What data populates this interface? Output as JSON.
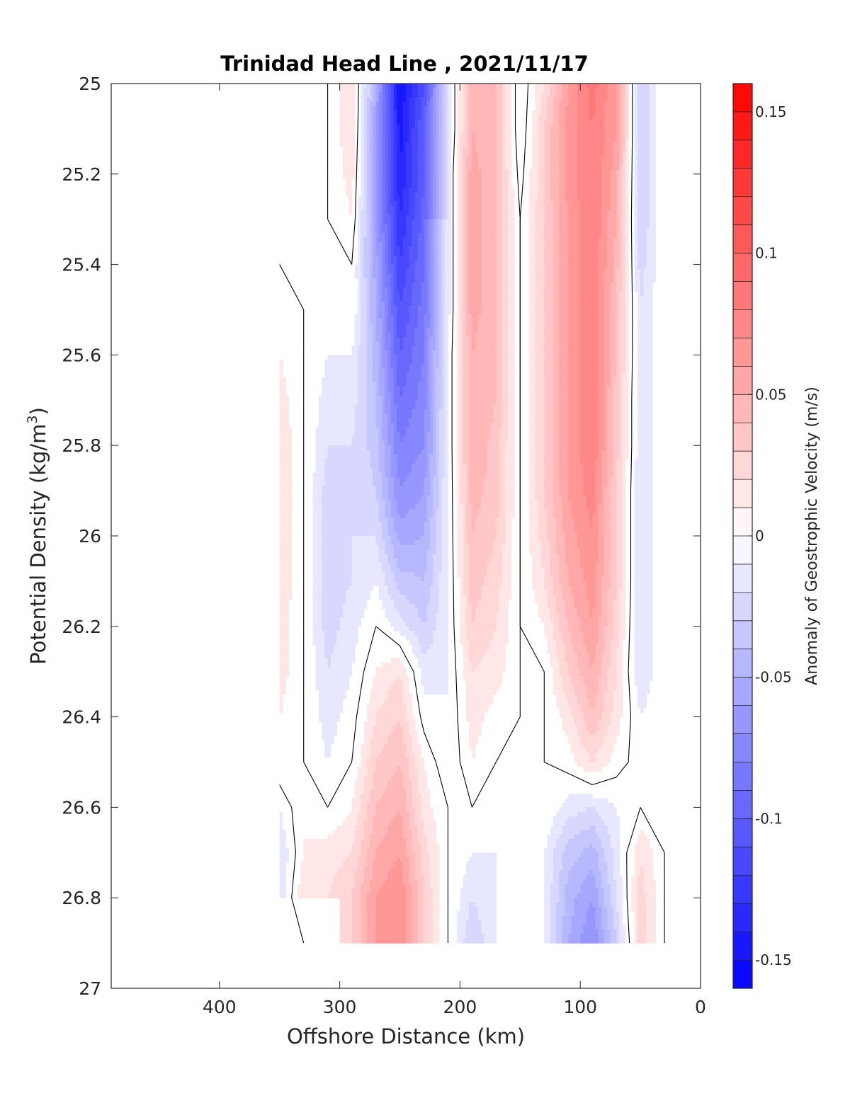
{
  "chart_data": {
    "type": "heatmap",
    "title": "Trinidad Head Line , 2021/11/17",
    "xlabel": "Offshore Distance (km)",
    "ylabel": "Potential Density (kg/m",
    "ylabel_sup": "3",
    "ylabel_close": ")",
    "colorbar_label": "Anomaly of Geostrophic Velocity (m/s)",
    "xlim": [
      490,
      0
    ],
    "ylim": [
      25,
      27
    ],
    "x_reversed": true,
    "y_reversed": true,
    "x_ticks": [
      {
        "value": 400,
        "label": "400"
      },
      {
        "value": 300,
        "label": "300"
      },
      {
        "value": 200,
        "label": "200"
      },
      {
        "value": 100,
        "label": "100"
      },
      {
        "value": 0,
        "label": "0"
      }
    ],
    "y_ticks": [
      {
        "value": 25,
        "label": "25"
      },
      {
        "value": 25.2,
        "label": "25.2"
      },
      {
        "value": 25.4,
        "label": "25.4"
      },
      {
        "value": 25.6,
        "label": "25.6"
      },
      {
        "value": 25.8,
        "label": "25.8"
      },
      {
        "value": 26,
        "label": "26"
      },
      {
        "value": 26.2,
        "label": "26.2"
      },
      {
        "value": 26.4,
        "label": "26.4"
      },
      {
        "value": 26.6,
        "label": "26.6"
      },
      {
        "value": 26.8,
        "label": "26.8"
      },
      {
        "value": 27,
        "label": "27"
      }
    ],
    "colorbar": {
      "range": [
        -0.16,
        0.16
      ],
      "levels": 32,
      "min_color": "#0000ff",
      "zero_color": "#ffffff",
      "max_color": "#ff0000",
      "ticks": [
        {
          "value": 0.15,
          "label": "0.15"
        },
        {
          "value": 0.1,
          "label": "0.1"
        },
        {
          "value": 0.05,
          "label": "0.05"
        },
        {
          "value": 0,
          "label": "0"
        },
        {
          "value": -0.05,
          "label": "-0.05"
        },
        {
          "value": -0.1,
          "label": "-0.1"
        },
        {
          "value": -0.15,
          "label": "-0.15"
        }
      ]
    },
    "grid": false,
    "data_extent": {
      "x": [
        30,
        350
      ],
      "y_max_full": 26.8,
      "y_max_partial": 26.9
    },
    "grid_x": [
      350,
      330,
      310,
      290,
      270,
      250,
      230,
      210,
      190,
      170,
      150,
      130,
      110,
      90,
      70,
      50,
      30
    ],
    "grid_y": [
      25.0,
      25.1,
      25.2,
      25.3,
      25.4,
      25.5,
      25.6,
      25.7,
      25.8,
      25.9,
      26.0,
      26.1,
      26.2,
      26.3,
      26.4,
      26.5,
      26.6,
      26.7,
      26.8,
      26.9
    ],
    "values": [
      [
        0.0,
        -0.01,
        0.0,
        0.02,
        -0.05,
        -0.15,
        -0.11,
        -0.02,
        0.05,
        0.04,
        -0.01,
        0.02,
        0.06,
        0.085,
        0.06,
        -0.03,
        0.0
      ],
      [
        0.0,
        -0.01,
        0.0,
        0.02,
        -0.06,
        -0.145,
        -0.1,
        -0.02,
        0.05,
        0.04,
        -0.01,
        0.03,
        0.065,
        0.08,
        0.06,
        -0.03,
        0.0
      ],
      [
        0.0,
        -0.01,
        0.0,
        0.015,
        -0.06,
        -0.14,
        -0.1,
        -0.015,
        0.055,
        0.04,
        -0.005,
        0.03,
        0.065,
        0.08,
        0.055,
        -0.03,
        0.0
      ],
      [
        0.0,
        -0.01,
        0.0,
        0.01,
        -0.06,
        -0.13,
        -0.095,
        -0.015,
        0.055,
        0.04,
        0.0,
        0.03,
        0.06,
        0.08,
        0.05,
        -0.03,
        0.0
      ],
      [
        0.0,
        0.0,
        0.0,
        0.0,
        -0.055,
        -0.12,
        -0.09,
        -0.015,
        0.055,
        0.04,
        0.0,
        0.03,
        0.06,
        0.08,
        0.045,
        -0.025,
        0.0
      ],
      [
        0.01,
        0.0,
        0.0,
        0.0,
        -0.05,
        -0.11,
        -0.085,
        -0.015,
        0.055,
        0.04,
        0.0,
        0.03,
        0.06,
        0.08,
        0.04,
        -0.02,
        0.0
      ],
      [
        0.01,
        0.0,
        -0.01,
        -0.01,
        -0.045,
        -0.1,
        -0.08,
        -0.01,
        0.05,
        0.04,
        0.0,
        0.03,
        0.06,
        0.08,
        0.04,
        -0.02,
        0.0
      ],
      [
        0.015,
        0.0,
        -0.015,
        -0.015,
        -0.04,
        -0.09,
        -0.075,
        -0.01,
        0.05,
        0.04,
        0.0,
        0.03,
        0.06,
        0.08,
        0.035,
        -0.02,
        0.0
      ],
      [
        0.02,
        0.0,
        -0.02,
        -0.02,
        -0.035,
        -0.08,
        -0.07,
        -0.01,
        0.05,
        0.035,
        0.0,
        0.03,
        0.06,
        0.08,
        0.035,
        -0.02,
        0.0
      ],
      [
        0.02,
        0.0,
        -0.025,
        -0.02,
        -0.03,
        -0.07,
        -0.06,
        -0.01,
        0.045,
        0.035,
        0.0,
        0.03,
        0.06,
        0.075,
        0.03,
        -0.02,
        0.0
      ],
      [
        0.02,
        0.0,
        -0.025,
        -0.02,
        -0.02,
        -0.055,
        -0.05,
        -0.01,
        0.04,
        0.03,
        0.0,
        0.025,
        0.055,
        0.07,
        0.03,
        -0.02,
        0.0
      ],
      [
        0.02,
        0.0,
        -0.025,
        -0.02,
        -0.01,
        -0.035,
        -0.04,
        -0.01,
        0.035,
        0.025,
        0.0,
        0.02,
        0.05,
        0.065,
        0.03,
        -0.02,
        0.0
      ],
      [
        0.015,
        0.0,
        -0.025,
        -0.015,
        0.0,
        -0.015,
        -0.03,
        -0.01,
        0.03,
        0.02,
        0.0,
        0.01,
        0.04,
        0.06,
        0.025,
        -0.02,
        0.0
      ],
      [
        0.015,
        0.0,
        -0.02,
        -0.01,
        0.01,
        0.02,
        -0.015,
        -0.01,
        0.02,
        0.015,
        0.0,
        0.0,
        0.03,
        0.05,
        0.02,
        -0.02,
        0.0
      ],
      [
        0.01,
        0.0,
        -0.015,
        -0.005,
        0.02,
        0.03,
        -0.005,
        -0.01,
        0.015,
        0.005,
        0.0,
        0.0,
        0.015,
        0.04,
        0.015,
        -0.01,
        0.0
      ],
      [
        0.01,
        0.0,
        -0.01,
        0.0,
        0.03,
        0.04,
        0.01,
        -0.01,
        0.01,
        0.0,
        0.0,
        0.0,
        0.005,
        0.02,
        0.005,
        -0.005,
        0.0
      ],
      [
        -0.01,
        0.01,
        0.0,
        0.01,
        0.04,
        0.05,
        0.015,
        0.0,
        0.0,
        -0.01,
        0.0,
        0.0,
        -0.015,
        -0.02,
        -0.01,
        0.0,
        0.0
      ],
      [
        -0.02,
        0.01,
        0.015,
        0.02,
        0.05,
        0.06,
        0.025,
        0.0,
        -0.01,
        -0.01,
        0.0,
        -0.01,
        -0.035,
        -0.045,
        -0.015,
        0.02,
        0.0
      ],
      [
        -0.02,
        0.02,
        0.02,
        0.03,
        0.06,
        0.07,
        0.03,
        0.0,
        -0.02,
        -0.01,
        0.0,
        -0.01,
        -0.045,
        -0.06,
        -0.02,
        0.025,
        0.0
      ],
      [
        0.0,
        0.0,
        0.02,
        0.03,
        0.06,
        0.07,
        0.03,
        0.0,
        -0.03,
        -0.01,
        0.0,
        -0.01,
        -0.05,
        -0.07,
        -0.03,
        0.025,
        0.0
      ]
    ]
  }
}
